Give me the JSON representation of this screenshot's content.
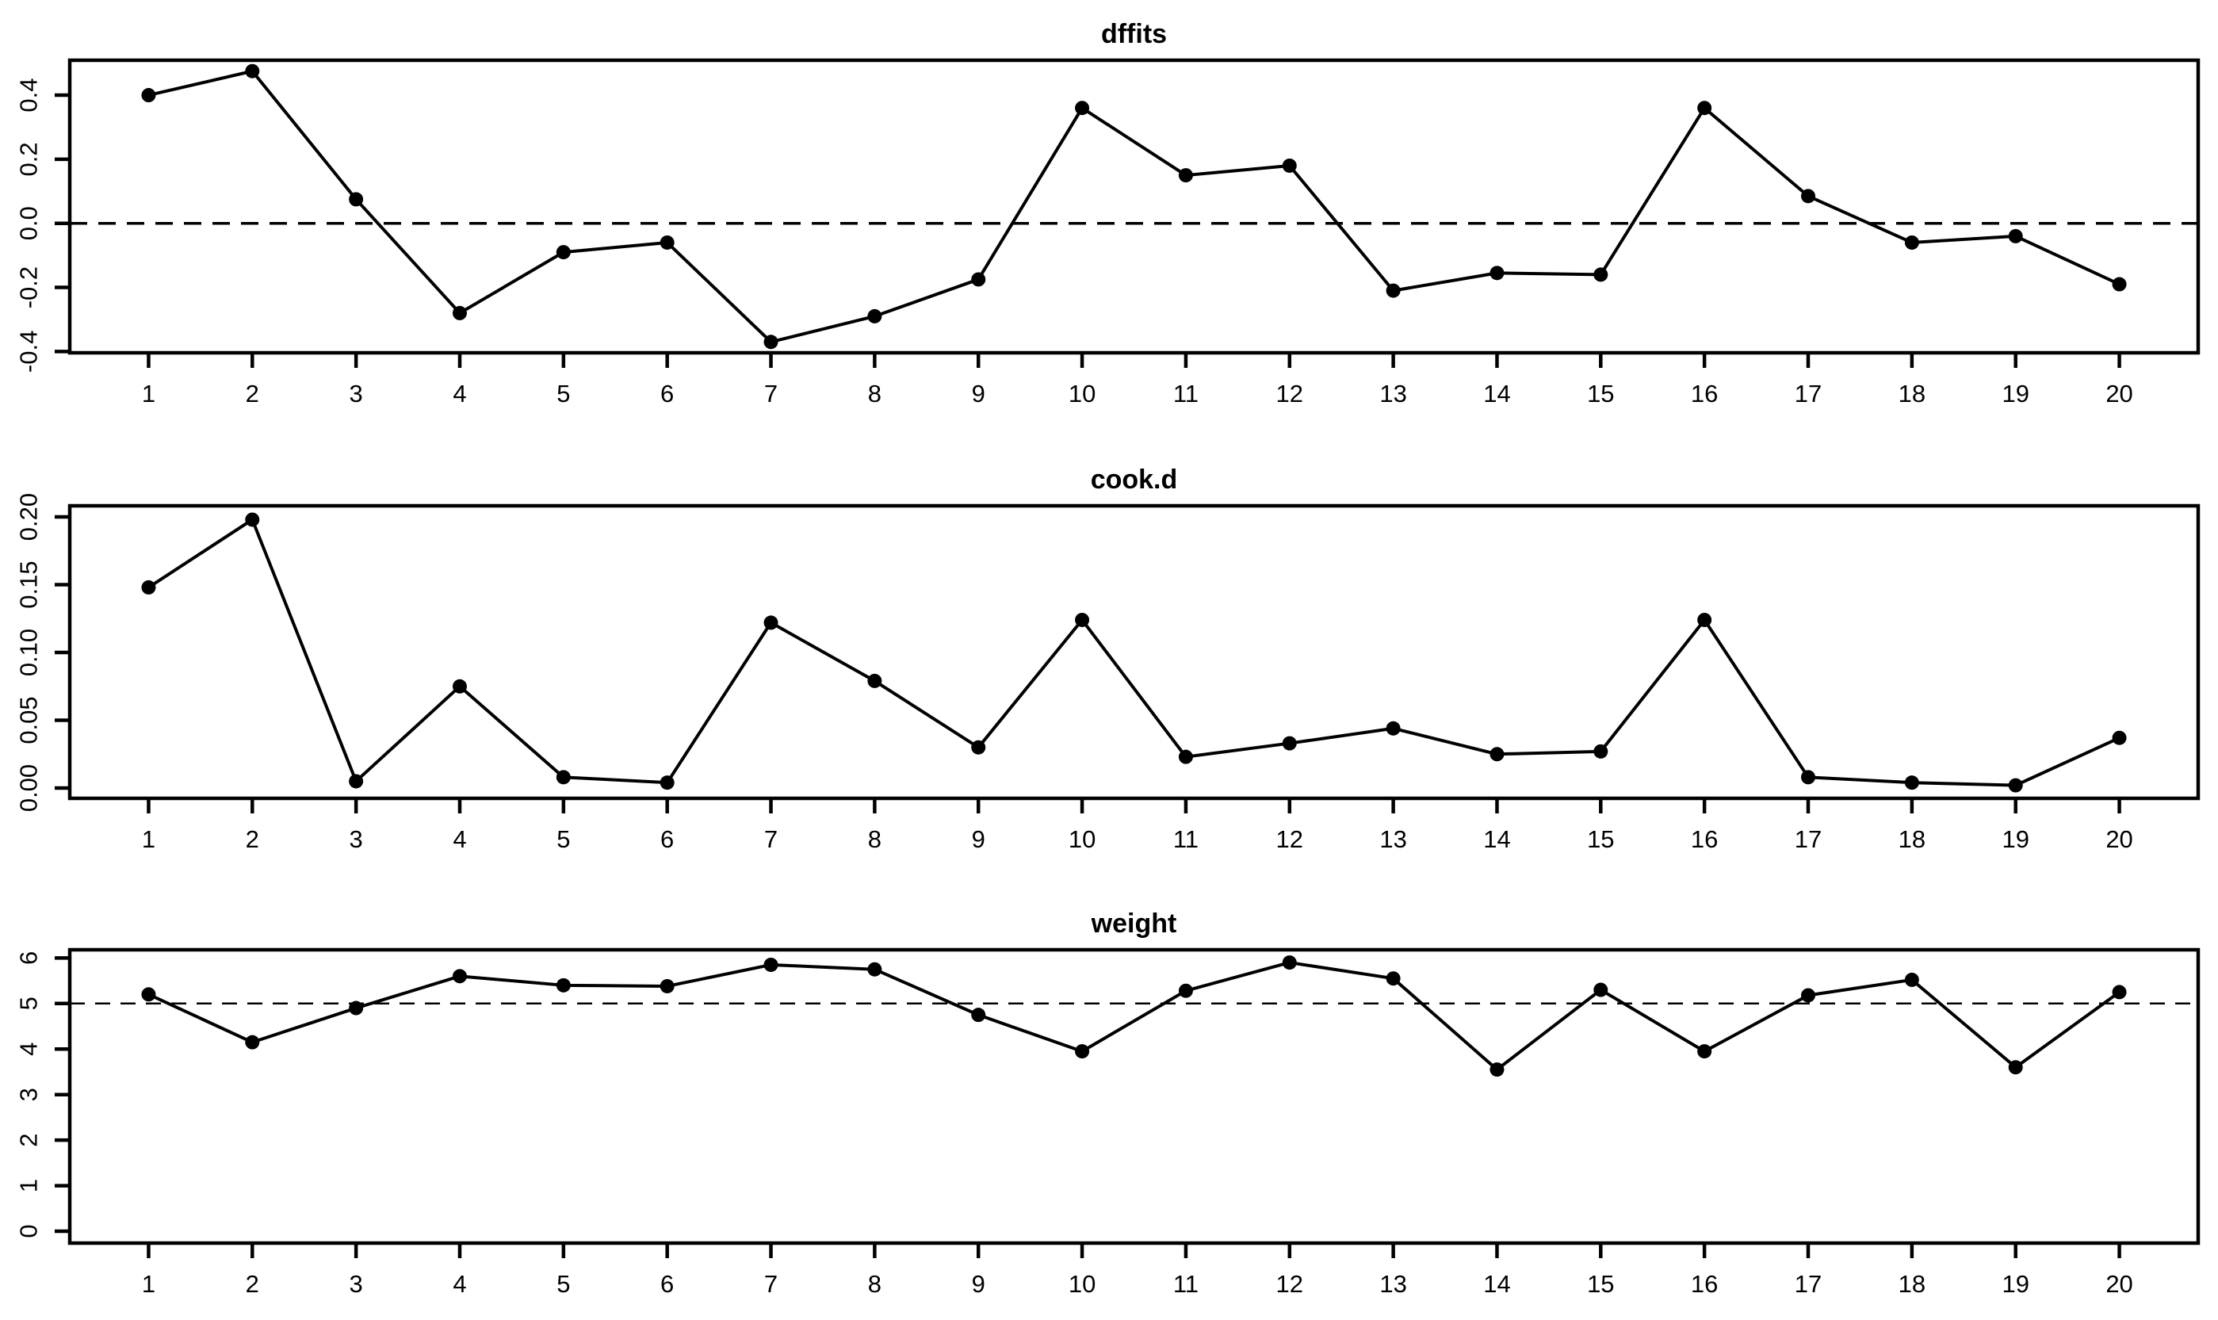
{
  "figure": {
    "background_color": "#ffffff",
    "foreground_color": "#000000"
  },
  "chart_data": [
    {
      "type": "line",
      "title": "dffits",
      "x": [
        1,
        2,
        3,
        4,
        5,
        6,
        7,
        8,
        9,
        10,
        11,
        12,
        13,
        14,
        15,
        16,
        17,
        18,
        19,
        20
      ],
      "values": [
        0.4,
        0.475,
        0.075,
        -0.28,
        -0.09,
        -0.06,
        -0.37,
        -0.29,
        -0.175,
        0.36,
        0.15,
        0.18,
        -0.21,
        -0.155,
        -0.16,
        0.36,
        0.085,
        -0.06,
        -0.04,
        -0.19
      ],
      "x_tick_labels": [
        "1",
        "2",
        "3",
        "4",
        "5",
        "6",
        "7",
        "8",
        "9",
        "10",
        "11",
        "12",
        "13",
        "14",
        "15",
        "16",
        "17",
        "18",
        "19",
        "20"
      ],
      "y_ticks": [
        -0.4,
        -0.2,
        0.0,
        0.2,
        0.4
      ],
      "y_tick_labels": [
        "-0.4",
        "-0.2",
        "0.0",
        "0.2",
        "0.4"
      ],
      "xlim": [
        0.24,
        20.76
      ],
      "ylim": [
        -0.404,
        0.509
      ],
      "hline": 0,
      "hline_style": "dashed",
      "marker": "filled-circle",
      "line_color": "#000000",
      "grid": false,
      "legend": null
    },
    {
      "type": "line",
      "title": "cook.d",
      "x": [
        1,
        2,
        3,
        4,
        5,
        6,
        7,
        8,
        9,
        10,
        11,
        12,
        13,
        14,
        15,
        16,
        17,
        18,
        19,
        20
      ],
      "values": [
        0.148,
        0.198,
        0.005,
        0.075,
        0.008,
        0.004,
        0.122,
        0.079,
        0.03,
        0.124,
        0.023,
        0.033,
        0.044,
        0.025,
        0.027,
        0.124,
        0.008,
        0.004,
        0.002,
        0.037
      ],
      "x_tick_labels": [
        "1",
        "2",
        "3",
        "4",
        "5",
        "6",
        "7",
        "8",
        "9",
        "10",
        "11",
        "12",
        "13",
        "14",
        "15",
        "16",
        "17",
        "18",
        "19",
        "20"
      ],
      "y_ticks": [
        0.0,
        0.05,
        0.1,
        0.15,
        0.2
      ],
      "y_tick_labels": [
        "0.00",
        "0.05",
        "0.10",
        "0.15",
        "0.20"
      ],
      "xlim": [
        0.24,
        20.76
      ],
      "ylim": [
        -0.0076,
        0.2082
      ],
      "hline": null,
      "hline_style": null,
      "marker": "filled-circle",
      "line_color": "#000000",
      "grid": false,
      "legend": null
    },
    {
      "type": "line",
      "title": "weight",
      "x": [
        1,
        2,
        3,
        4,
        5,
        6,
        7,
        8,
        9,
        10,
        11,
        12,
        13,
        14,
        15,
        16,
        17,
        18,
        19,
        20
      ],
      "values": [
        5.2,
        4.15,
        4.9,
        5.6,
        5.4,
        5.38,
        5.85,
        5.75,
        4.75,
        3.95,
        5.28,
        5.9,
        5.55,
        3.55,
        5.3,
        3.95,
        5.18,
        5.52,
        3.6,
        5.25
      ],
      "x_tick_labels": [
        "1",
        "2",
        "3",
        "4",
        "5",
        "6",
        "7",
        "8",
        "9",
        "10",
        "11",
        "12",
        "13",
        "14",
        "15",
        "16",
        "17",
        "18",
        "19",
        "20"
      ],
      "y_ticks": [
        0,
        1,
        2,
        3,
        4,
        5,
        6
      ],
      "y_tick_labels": [
        "0",
        "1",
        "2",
        "3",
        "4",
        "5",
        "6"
      ],
      "xlim": [
        0.24,
        20.76
      ],
      "ylim": [
        -0.26,
        6.18
      ],
      "hline": 5,
      "hline_style": "dashed",
      "marker": "filled-circle",
      "line_color": "#000000",
      "grid": false,
      "legend": null
    }
  ]
}
